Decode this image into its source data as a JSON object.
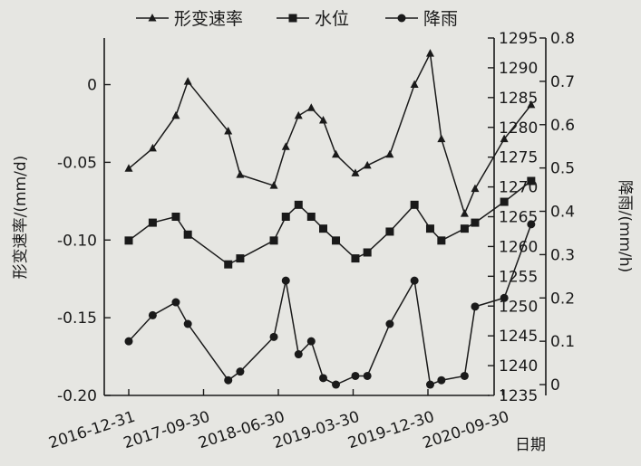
{
  "chart_data": {
    "type": "line",
    "legend_position": "top",
    "grid": false,
    "xlabel": "日期",
    "x_tick_labels": [
      "2016-12-31",
      "2017-09-30",
      "2018-06-30",
      "2019-03-30",
      "2019-12-30",
      "2020-09-30"
    ],
    "y_left": {
      "label": "形变速率/(mm/d)",
      "range": [
        -0.2,
        0.03
      ],
      "ticks": [
        0,
        -0.05,
        -0.1,
        -0.15,
        -0.2
      ],
      "tick_labels": [
        "0",
        "-0.05",
        "-0.10",
        "-0.15",
        "-0.20"
      ]
    },
    "y_right_1": {
      "label": "",
      "range": [
        1235,
        1295
      ],
      "ticks": [
        1295,
        1290,
        1285,
        1280,
        1275,
        1270,
        1265,
        1260,
        1255,
        1250,
        1245,
        1240,
        1235
      ],
      "tick_labels": [
        "1295",
        "1290",
        "1285",
        "1280",
        "1275",
        "1270",
        "1265",
        "1260",
        "1255",
        "1250",
        "1245",
        "1240",
        "1235"
      ]
    },
    "y_right_2": {
      "label": "降雨/(mm/h)",
      "range": [
        -0.025,
        0.8
      ],
      "ticks": [
        0.8,
        0.7,
        0.6,
        0.5,
        0.4,
        0.3,
        0.2,
        0.1,
        0
      ],
      "tick_labels": [
        "0.8",
        "0.7",
        "0.6",
        "0.5",
        "0.4",
        "0.3",
        "0.2",
        "0.1",
        "0"
      ]
    },
    "series": [
      {
        "name": "形变速率",
        "axis": "left",
        "marker": "triangle",
        "x": [
          0.0,
          0.32,
          0.63,
          0.79,
          1.33,
          1.49,
          1.94,
          2.1,
          2.27,
          2.44,
          2.6,
          2.77,
          3.03,
          3.19,
          3.49,
          3.82,
          4.03,
          4.18,
          4.49,
          4.63,
          5.02,
          5.38
        ],
        "y": [
          -0.054,
          -0.041,
          -0.02,
          0.002,
          -0.03,
          -0.058,
          -0.065,
          -0.04,
          -0.02,
          -0.015,
          -0.023,
          -0.045,
          -0.057,
          -0.052,
          -0.045,
          0.0,
          0.02,
          -0.035,
          -0.083,
          -0.067,
          -0.035,
          -0.013
        ]
      },
      {
        "name": "水位",
        "axis": "right_1",
        "marker": "square",
        "x": [
          0.0,
          0.32,
          0.63,
          0.79,
          1.33,
          1.49,
          1.94,
          2.1,
          2.27,
          2.44,
          2.6,
          2.77,
          3.03,
          3.19,
          3.49,
          3.82,
          4.03,
          4.18,
          4.49,
          4.63,
          5.02,
          5.38
        ],
        "y": [
          1261,
          1264,
          1265,
          1262,
          1257,
          1258,
          1261,
          1265,
          1267,
          1265,
          1263,
          1261,
          1258,
          1259,
          1262.5,
          1267,
          1263,
          1261,
          1263,
          1264,
          1267.5,
          1271
        ]
      },
      {
        "name": "降雨",
        "axis": "right_2",
        "marker": "circle",
        "x": [
          0.0,
          0.32,
          0.63,
          0.79,
          1.33,
          1.49,
          1.94,
          2.1,
          2.27,
          2.44,
          2.6,
          2.77,
          3.03,
          3.19,
          3.49,
          3.82,
          4.03,
          4.18,
          4.49,
          4.63,
          5.02,
          5.38
        ],
        "y": [
          0.1,
          0.16,
          0.19,
          0.14,
          0.01,
          0.03,
          0.11,
          0.24,
          0.07,
          0.1,
          0.015,
          0.0,
          0.02,
          0.02,
          0.14,
          0.24,
          0.0,
          0.01,
          0.02,
          0.18,
          0.2,
          0.37
        ]
      }
    ]
  }
}
